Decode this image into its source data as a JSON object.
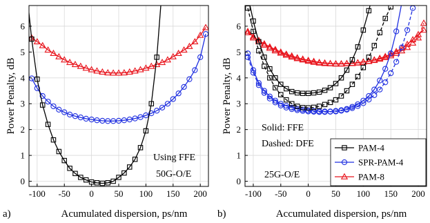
{
  "chart_data": [
    {
      "type": "line",
      "panel_label": "a)",
      "xlabel": "Acumulated dispersion, ps/nm",
      "ylabel": "Power Penalty, dB",
      "xlim": [
        -115,
        215
      ],
      "ylim": [
        -0.2,
        6.8
      ],
      "xticks": [
        -100,
        -50,
        0,
        50,
        100,
        150,
        200
      ],
      "yticks": [
        0,
        1,
        2,
        3,
        4,
        5,
        6
      ],
      "grid": true,
      "annotations": [
        "Using FFE",
        "50G-O/E"
      ],
      "series": [
        {
          "key": "pam8",
          "color": "#e8141c",
          "marker": "triangle",
          "dashed": false,
          "x": [
            -110,
            -100,
            -90,
            -80,
            -70,
            -60,
            -50,
            -40,
            -30,
            -20,
            -10,
            0,
            10,
            20,
            30,
            40,
            50,
            60,
            70,
            80,
            90,
            100,
            110,
            120,
            130,
            140,
            150,
            160,
            170,
            180,
            190,
            200,
            210
          ],
          "y": [
            5.55,
            5.4,
            5.25,
            5.08,
            4.95,
            4.82,
            4.7,
            4.6,
            4.52,
            4.45,
            4.38,
            4.32,
            4.27,
            4.23,
            4.2,
            4.19,
            4.19,
            4.2,
            4.23,
            4.27,
            4.32,
            4.38,
            4.45,
            4.52,
            4.6,
            4.7,
            4.82,
            4.95,
            5.08,
            5.22,
            5.4,
            5.65,
            5.95
          ]
        },
        {
          "key": "spr",
          "color": "#1f2fe0",
          "marker": "circle",
          "dashed": false,
          "x": [
            -110,
            -100,
            -90,
            -80,
            -70,
            -60,
            -50,
            -40,
            -30,
            -20,
            -10,
            0,
            10,
            20,
            30,
            40,
            50,
            60,
            70,
            80,
            90,
            100,
            110,
            120,
            130,
            140,
            150,
            160,
            170,
            180,
            190,
            200,
            210
          ],
          "y": [
            3.98,
            3.6,
            3.3,
            3.08,
            2.9,
            2.77,
            2.67,
            2.58,
            2.52,
            2.47,
            2.42,
            2.39,
            2.36,
            2.34,
            2.33,
            2.33,
            2.34,
            2.36,
            2.39,
            2.43,
            2.48,
            2.55,
            2.63,
            2.73,
            2.85,
            3.0,
            3.18,
            3.4,
            3.65,
            3.95,
            4.3,
            4.8,
            5.7
          ]
        },
        {
          "key": "pam4",
          "color": "#000000",
          "marker": "square",
          "dashed": false,
          "x": [
            -120,
            -110,
            -100,
            -90,
            -80,
            -70,
            -60,
            -50,
            -40,
            -30,
            -20,
            -10,
            0,
            10,
            20,
            30,
            40,
            50,
            60,
            70,
            80,
            90,
            100,
            110,
            120,
            130
          ],
          "y": [
            7.5,
            5.5,
            3.95,
            2.95,
            2.2,
            1.6,
            1.15,
            0.8,
            0.5,
            0.3,
            0.15,
            0.05,
            -0.03,
            -0.06,
            -0.08,
            -0.06,
            0.0,
            0.15,
            0.32,
            0.55,
            0.85,
            1.3,
            1.95,
            3.0,
            4.8,
            7.5
          ]
        }
      ]
    },
    {
      "type": "line",
      "panel_label": "b)",
      "xlabel": "Accumulated dispersion, ps/nm",
      "ylabel": "Power Penalty, dB",
      "xlim": [
        -115,
        215
      ],
      "ylim": [
        -0.2,
        6.8
      ],
      "xticks": [
        -100,
        -50,
        0,
        50,
        100,
        150,
        200
      ],
      "yticks": [
        0,
        1,
        2,
        3,
        4,
        5,
        6
      ],
      "grid": true,
      "annotations": [
        "Solid: FFE",
        "Dashed: DFE",
        "25G-O/E"
      ],
      "legend": {
        "placement": "bottom-right",
        "entries": [
          {
            "label": "PAM-4",
            "color": "#000000",
            "marker": "square"
          },
          {
            "label": "SPR-PAM-4",
            "color": "#1f2fe0",
            "marker": "circle"
          },
          {
            "label": "PAM-8",
            "color": "#e8141c",
            "marker": "triangle"
          }
        ]
      },
      "series": [
        {
          "key": "pam8-ffe",
          "color": "#e8141c",
          "marker": "triangle",
          "dashed": false,
          "x": [
            -110,
            -100,
            -90,
            -80,
            -70,
            -60,
            -50,
            -40,
            -30,
            -20,
            -10,
            0,
            10,
            20,
            30,
            40,
            50,
            60,
            70,
            80,
            90,
            100,
            110,
            120,
            130,
            140,
            150,
            160,
            170,
            180,
            190,
            200,
            210
          ],
          "y": [
            5.8,
            5.6,
            5.45,
            5.32,
            5.2,
            5.1,
            5.0,
            4.92,
            4.85,
            4.78,
            4.73,
            4.68,
            4.64,
            4.6,
            4.58,
            4.56,
            4.55,
            4.55,
            4.56,
            4.57,
            4.59,
            4.62,
            4.65,
            4.7,
            4.76,
            4.83,
            4.92,
            5.02,
            5.15,
            5.3,
            5.48,
            5.68,
            5.85
          ]
        },
        {
          "key": "pam8-dfe",
          "color": "#e8141c",
          "marker": "triangle",
          "dashed": true,
          "x": [
            -110,
            -100,
            -90,
            -80,
            -70,
            -60,
            -50,
            -40,
            -30,
            -20,
            -10,
            0,
            10,
            20,
            30,
            40,
            50,
            60,
            70,
            80,
            90,
            100,
            110,
            120,
            130,
            140,
            150,
            160,
            170,
            180,
            190,
            200,
            210
          ],
          "y": [
            5.75,
            5.55,
            5.4,
            5.27,
            5.15,
            5.05,
            4.96,
            4.88,
            4.81,
            4.75,
            4.7,
            4.65,
            4.61,
            4.58,
            4.56,
            4.55,
            4.54,
            4.54,
            4.55,
            4.56,
            4.58,
            4.61,
            4.64,
            4.68,
            4.73,
            4.79,
            4.86,
            4.95,
            5.05,
            5.18,
            5.35,
            5.55,
            6.12
          ]
        },
        {
          "key": "spr-ffe",
          "color": "#1f2fe0",
          "marker": "circle",
          "dashed": false,
          "x": [
            -110,
            -100,
            -90,
            -80,
            -70,
            -60,
            -50,
            -40,
            -30,
            -20,
            -10,
            0,
            10,
            20,
            30,
            40,
            50,
            60,
            70,
            80,
            90,
            100,
            110,
            120,
            130,
            140,
            150,
            160,
            170
          ],
          "y": [
            4.95,
            4.3,
            3.8,
            3.5,
            3.28,
            3.12,
            3.0,
            2.92,
            2.85,
            2.8,
            2.77,
            2.74,
            2.72,
            2.71,
            2.7,
            2.7,
            2.72,
            2.75,
            2.8,
            2.88,
            2.98,
            3.12,
            3.3,
            3.55,
            3.9,
            4.35,
            4.95,
            5.8,
            6.9
          ]
        },
        {
          "key": "spr-dfe",
          "color": "#1f2fe0",
          "marker": "circle",
          "dashed": true,
          "x": [
            -110,
            -100,
            -90,
            -80,
            -70,
            -60,
            -50,
            -40,
            -30,
            -20,
            -10,
            0,
            10,
            20,
            30,
            40,
            50,
            60,
            70,
            80,
            90,
            100,
            110,
            120,
            130,
            140,
            150,
            160,
            170,
            180,
            190
          ],
          "y": [
            4.8,
            4.2,
            3.72,
            3.42,
            3.2,
            3.05,
            2.93,
            2.85,
            2.79,
            2.75,
            2.72,
            2.7,
            2.69,
            2.68,
            2.68,
            2.69,
            2.7,
            2.73,
            2.77,
            2.83,
            2.91,
            3.02,
            3.16,
            3.33,
            3.55,
            3.83,
            4.18,
            4.62,
            5.18,
            5.85,
            6.7
          ]
        },
        {
          "key": "pam4-ffe",
          "color": "#000000",
          "marker": "square",
          "dashed": false,
          "x": [
            -110,
            -100,
            -90,
            -80,
            -70,
            -60,
            -50,
            -40,
            -30,
            -20,
            -10,
            0,
            10,
            20,
            30,
            40,
            50,
            60,
            70,
            80,
            90,
            100,
            110,
            120
          ],
          "y": [
            7.2,
            6.2,
            5.4,
            4.8,
            4.35,
            4.0,
            3.75,
            3.58,
            3.47,
            3.42,
            3.4,
            3.4,
            3.42,
            3.45,
            3.52,
            3.62,
            3.78,
            4.0,
            4.3,
            4.7,
            5.2,
            5.85,
            6.6,
            7.5
          ]
        },
        {
          "key": "pam4-dfe",
          "color": "#000000",
          "marker": "square",
          "dashed": true,
          "x": [
            -110,
            -100,
            -90,
            -80,
            -70,
            -60,
            -50,
            -40,
            -30,
            -20,
            -10,
            0,
            10,
            20,
            30,
            40,
            50,
            60,
            70,
            80,
            90,
            100,
            110,
            120,
            130,
            140,
            150,
            160
          ],
          "y": [
            6.7,
            5.8,
            5.05,
            4.45,
            4.0,
            3.62,
            3.35,
            3.15,
            3.0,
            2.9,
            2.85,
            2.84,
            2.86,
            2.9,
            2.97,
            3.05,
            3.15,
            3.3,
            3.5,
            3.75,
            4.05,
            4.4,
            4.8,
            5.25,
            5.75,
            6.3,
            6.75,
            7.3
          ]
        }
      ]
    }
  ]
}
